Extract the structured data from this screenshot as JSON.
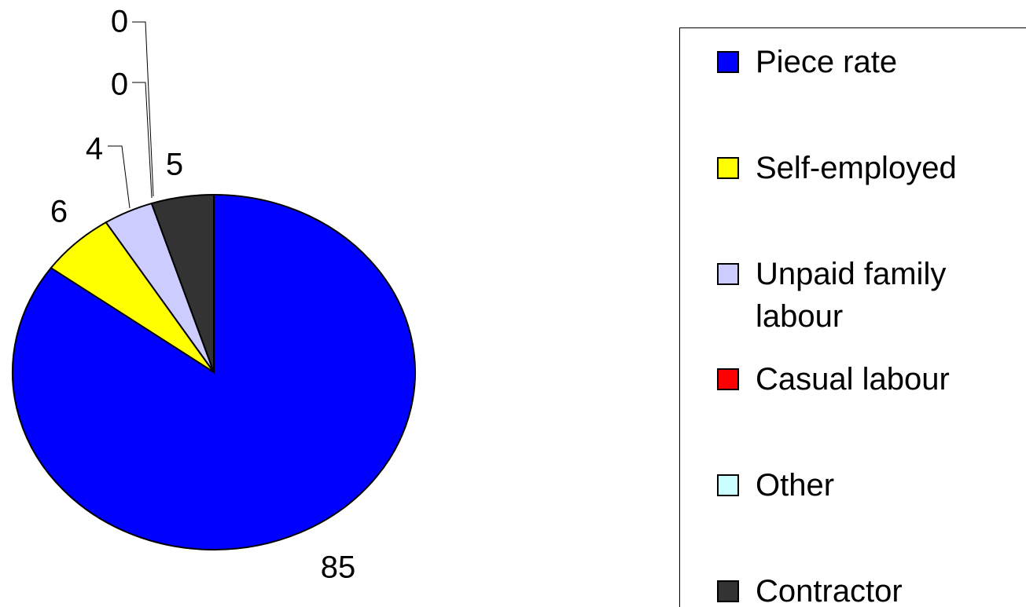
{
  "chart_data": {
    "type": "pie",
    "categories": [
      "Piece rate",
      "Self-employed",
      "Unpaid family labour",
      "Casual labour",
      "Other",
      "Contractor"
    ],
    "values": [
      85,
      6,
      4,
      0,
      0,
      5
    ],
    "colors": [
      "#0000ff",
      "#ffff00",
      "#ccccff",
      "#ff0000",
      "#ccffff",
      "#333333"
    ],
    "legend": "right"
  }
}
